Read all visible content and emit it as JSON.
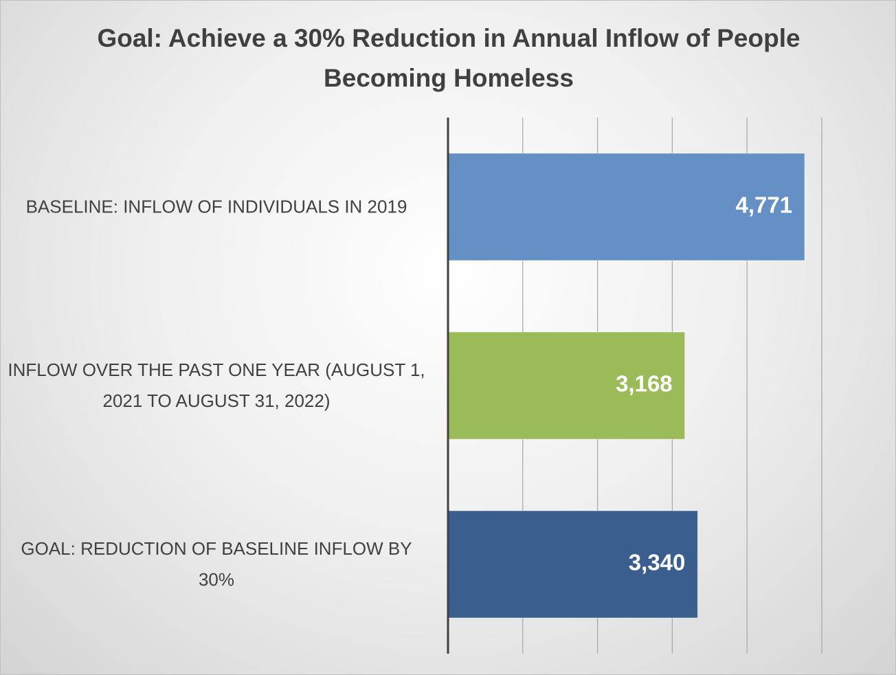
{
  "chart_data": {
    "type": "bar",
    "orientation": "horizontal",
    "title": "Goal: Achieve a 30% Reduction in Annual Inflow of People Becoming Homeless",
    "categories": [
      "BASELINE: INFLOW OF INDIVIDUALS IN 2019",
      "INFLOW OVER THE PAST ONE YEAR (AUGUST 1, 2021 TO AUGUST 31, 2022)",
      "GOAL: REDUCTION OF BASELINE INFLOW BY 30%"
    ],
    "values": [
      4771,
      3168,
      3340
    ],
    "value_labels": [
      "4,771",
      "3,168",
      "3,340"
    ],
    "colors": [
      "#6590c6",
      "#9bbb59",
      "#3a5f8e"
    ],
    "xlim": [
      0,
      5000
    ],
    "xticks": [
      0,
      1000,
      2000,
      3000,
      4000,
      5000
    ],
    "grid": true
  }
}
